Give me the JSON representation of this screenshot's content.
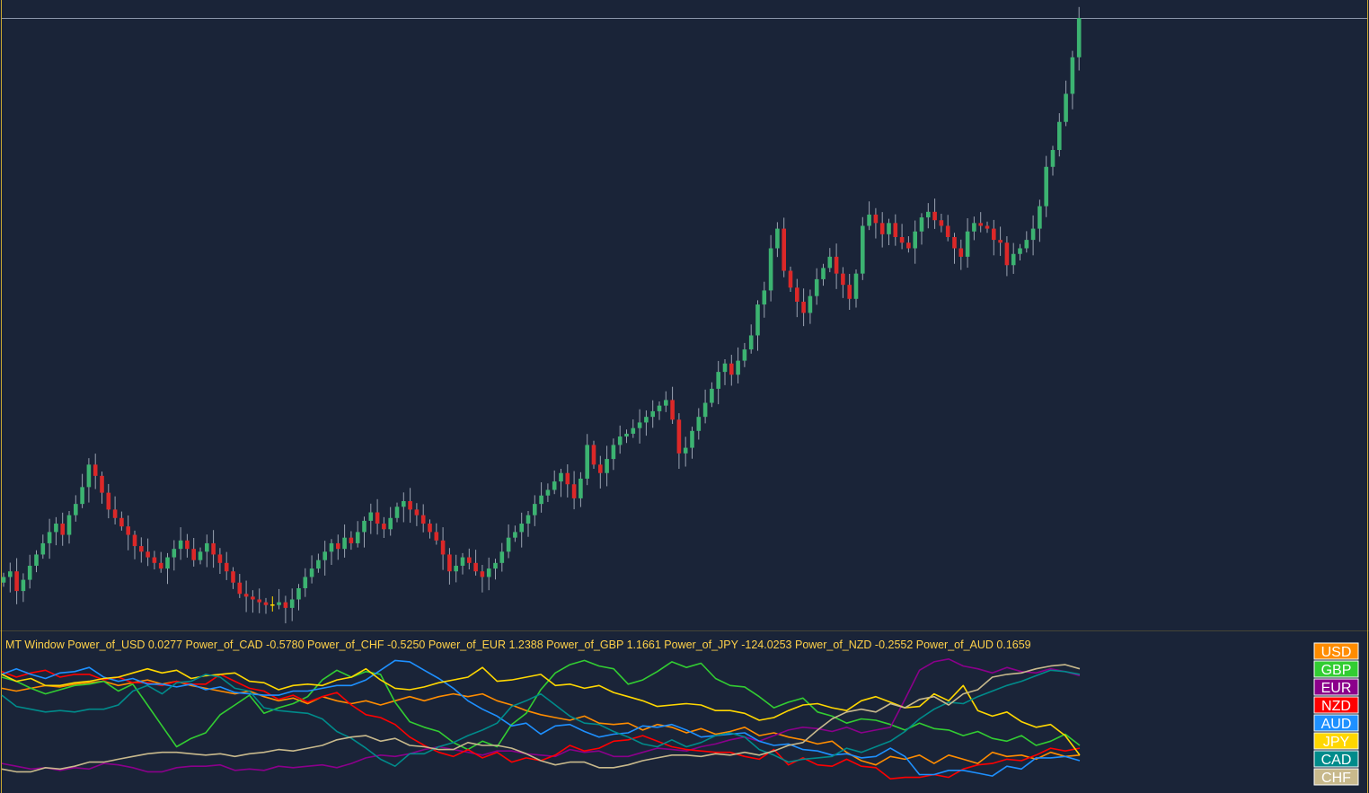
{
  "indicator": {
    "window_label": "MT Window",
    "readouts": [
      {
        "label": "Power_of_USD",
        "value": "0.0277"
      },
      {
        "label": "Power_of_CAD",
        "value": "-0.5780"
      },
      {
        "label": "Power_of_CHF",
        "value": "-0.5250"
      },
      {
        "label": "Power_of_EUR",
        "value": "1.2388"
      },
      {
        "label": "Power_of_GBP",
        "value": "1.1661"
      },
      {
        "label": "Power_of_JPY",
        "value": "-124.0253"
      },
      {
        "label": "Power_of_NZD",
        "value": "-0.2552"
      },
      {
        "label": "Power_of_AUD",
        "value": "0.1659"
      }
    ]
  },
  "legend": [
    {
      "label": "USD",
      "color": "#ff8c00"
    },
    {
      "label": "GBP",
      "color": "#32cd32"
    },
    {
      "label": "EUR",
      "color": "#8b008b"
    },
    {
      "label": "NZD",
      "color": "#ff0000"
    },
    {
      "label": "AUD",
      "color": "#1e90ff"
    },
    {
      "label": "JPY",
      "color": "#ffd700"
    },
    {
      "label": "CAD",
      "color": "#008b8b"
    },
    {
      "label": "CHF",
      "color": "#c8b98c"
    }
  ],
  "colors": {
    "background": "#1a2438",
    "frame": "#c8a832",
    "bull": "#3cb371",
    "bear": "#dc2828",
    "doji": "#ffd700"
  },
  "chart_data": [
    {
      "type": "candlestick",
      "ylim": [
        0,
        100
      ],
      "grid": false,
      "closes": [
        22,
        24,
        17,
        21,
        26,
        30,
        34,
        38,
        41,
        37,
        44,
        48,
        54,
        62,
        58,
        52,
        46,
        43,
        40,
        37,
        33,
        31,
        29,
        27,
        25,
        29,
        32,
        35,
        32,
        28,
        31,
        34,
        30,
        27,
        24,
        20,
        16,
        15,
        14,
        13,
        12,
        12,
        13,
        11,
        14,
        18,
        22,
        25,
        28,
        31,
        34,
        32,
        36,
        34,
        38,
        42,
        45,
        41,
        39,
        43,
        47,
        49,
        46,
        44,
        41,
        38,
        35,
        30,
        24,
        26,
        29,
        27,
        24,
        22,
        25,
        27,
        31,
        36,
        38,
        41,
        44,
        48,
        51,
        53,
        56,
        59,
        55,
        50,
        57,
        69,
        62,
        59,
        64,
        69,
        72,
        73,
        75,
        77,
        79,
        81,
        83,
        85,
        78,
        66,
        68,
        74,
        79,
        84,
        89,
        95,
        98,
        94,
        99,
        103,
        108,
        119,
        124,
        139,
        146,
        131,
        125,
        120,
        116,
        122,
        128,
        132,
        136,
        130,
        126,
        121,
        130,
        147,
        151,
        148,
        144,
        148,
        143,
        141,
        139,
        145,
        150,
        152,
        149,
        147,
        143,
        139,
        136,
        145,
        148,
        147,
        146,
        142,
        141,
        133,
        137,
        139,
        142,
        146,
        154,
        168,
        174,
        184,
        194,
        207,
        221
      ]
    },
    {
      "type": "line",
      "ylim": [
        0,
        100
      ],
      "grid": false,
      "series": [
        {
          "name": "USD",
          "values": [
            72,
            70,
            72,
            74,
            73,
            75,
            76,
            77,
            74,
            76,
            78,
            75,
            77,
            74,
            72,
            70,
            68,
            70,
            66,
            63,
            65,
            61,
            66,
            63,
            61,
            63,
            60,
            63,
            66,
            63,
            66,
            68,
            66,
            68,
            63,
            60,
            56,
            53,
            51,
            49,
            52,
            47,
            46,
            47,
            42,
            46,
            44,
            40,
            43,
            39,
            41,
            44,
            38,
            40,
            37,
            35,
            32,
            34,
            26,
            20,
            17,
            23,
            21,
            24,
            18,
            24,
            21,
            18,
            26,
            23,
            24,
            21,
            26,
            23,
            24
          ]
        },
        {
          "name": "GBP",
          "values": [
            80,
            77,
            72,
            68,
            71,
            74,
            75,
            77,
            70,
            75,
            60,
            45,
            30,
            36,
            40,
            53,
            60,
            67,
            54,
            58,
            61,
            66,
            78,
            85,
            80,
            84,
            82,
            62,
            48,
            44,
            41,
            33,
            28,
            34,
            30,
            46,
            54,
            71,
            83,
            89,
            92,
            88,
            86,
            75,
            78,
            84,
            91,
            87,
            90,
            79,
            74,
            73,
            66,
            58,
            62,
            65,
            55,
            52,
            47,
            50,
            49,
            46,
            42,
            47,
            43,
            42,
            38,
            41,
            36,
            34,
            38,
            31,
            34,
            39,
            31
          ]
        },
        {
          "name": "EUR",
          "values": [
            18,
            16,
            14,
            15,
            13,
            15,
            14,
            18,
            17,
            15,
            12,
            12,
            15,
            16,
            16,
            17,
            13,
            14,
            13,
            16,
            15,
            16,
            17,
            15,
            18,
            22,
            24,
            23,
            25,
            28,
            30,
            28,
            26,
            24,
            27,
            27,
            25,
            24,
            23,
            28,
            26,
            27,
            23,
            23,
            26,
            29,
            28,
            27,
            30,
            32,
            35,
            37,
            34,
            38,
            42,
            44,
            43,
            41,
            44,
            40,
            42,
            44,
            64,
            85,
            91,
            93,
            88,
            86,
            83,
            87,
            84,
            83,
            86,
            84,
            81
          ]
        },
        {
          "name": "NZD",
          "values": [
            84,
            80,
            83,
            85,
            80,
            82,
            82,
            78,
            80,
            76,
            76,
            74,
            77,
            75,
            75,
            82,
            77,
            72,
            70,
            64,
            67,
            62,
            66,
            69,
            60,
            53,
            51,
            46,
            37,
            31,
            26,
            23,
            28,
            22,
            26,
            19,
            22,
            20,
            24,
            31,
            27,
            29,
            34,
            35,
            38,
            34,
            30,
            28,
            27,
            26,
            26,
            23,
            21,
            28,
            17,
            22,
            17,
            16,
            21,
            16,
            15,
            7,
            8,
            8,
            10,
            8,
            14,
            17,
            18,
            21,
            20,
            24,
            29,
            27,
            29
          ]
        },
        {
          "name": "AUD",
          "values": [
            82,
            86,
            82,
            79,
            83,
            84,
            87,
            80,
            77,
            79,
            75,
            75,
            73,
            75,
            71,
            73,
            69,
            68,
            67,
            67,
            70,
            70,
            72,
            74,
            74,
            78,
            85,
            92,
            91,
            85,
            79,
            72,
            63,
            57,
            52,
            45,
            47,
            39,
            45,
            46,
            41,
            37,
            39,
            40,
            45,
            44,
            46,
            42,
            37,
            38,
            39,
            40,
            34,
            31,
            32,
            28,
            27,
            24,
            25,
            22,
            23,
            29,
            23,
            10,
            10,
            13,
            13,
            11,
            9,
            16,
            14,
            22,
            22,
            23,
            20
          ]
        },
        {
          "name": "JPY",
          "values": [
            82,
            77,
            79,
            74,
            74,
            76,
            77,
            79,
            80,
            83,
            86,
            83,
            85,
            79,
            81,
            82,
            83,
            77,
            76,
            71,
            74,
            75,
            74,
            78,
            80,
            86,
            78,
            72,
            71,
            73,
            76,
            78,
            80,
            87,
            77,
            78,
            80,
            82,
            74,
            75,
            72,
            74,
            69,
            66,
            63,
            59,
            60,
            61,
            60,
            56,
            56,
            54,
            49,
            51,
            56,
            60,
            61,
            58,
            56,
            63,
            66,
            62,
            58,
            59,
            68,
            63,
            74,
            56,
            52,
            55,
            48,
            44,
            46,
            38,
            24
          ]
        },
        {
          "name": "CAD",
          "values": [
            67,
            59,
            57,
            55,
            56,
            55,
            57,
            57,
            60,
            70,
            74,
            68,
            76,
            77,
            82,
            80,
            72,
            70,
            58,
            56,
            55,
            54,
            50,
            41,
            36,
            29,
            21,
            16,
            25,
            25,
            30,
            33,
            38,
            42,
            47,
            59,
            63,
            68,
            60,
            52,
            47,
            46,
            41,
            37,
            32,
            30,
            35,
            30,
            33,
            38,
            40,
            37,
            28,
            24,
            19,
            21,
            22,
            23,
            29,
            26,
            30,
            34,
            41,
            50,
            57,
            62,
            61,
            66,
            70,
            74,
            77,
            81,
            85,
            84,
            82
          ]
        },
        {
          "name": "CHF",
          "values": [
            14,
            12,
            12,
            15,
            14,
            16,
            19,
            19,
            21,
            23,
            25,
            26,
            26,
            25,
            24,
            25,
            23,
            25,
            26,
            28,
            27,
            29,
            31,
            35,
            37,
            38,
            34,
            36,
            31,
            30,
            28,
            28,
            33,
            31,
            31,
            29,
            25,
            20,
            17,
            19,
            19,
            15,
            15,
            17,
            20,
            22,
            24,
            24,
            23,
            25,
            24,
            26,
            24,
            27,
            31,
            33,
            42,
            50,
            55,
            57,
            55,
            61,
            58,
            64,
            66,
            60,
            68,
            71,
            80,
            82,
            83,
            86,
            88,
            89,
            86
          ]
        }
      ]
    }
  ]
}
